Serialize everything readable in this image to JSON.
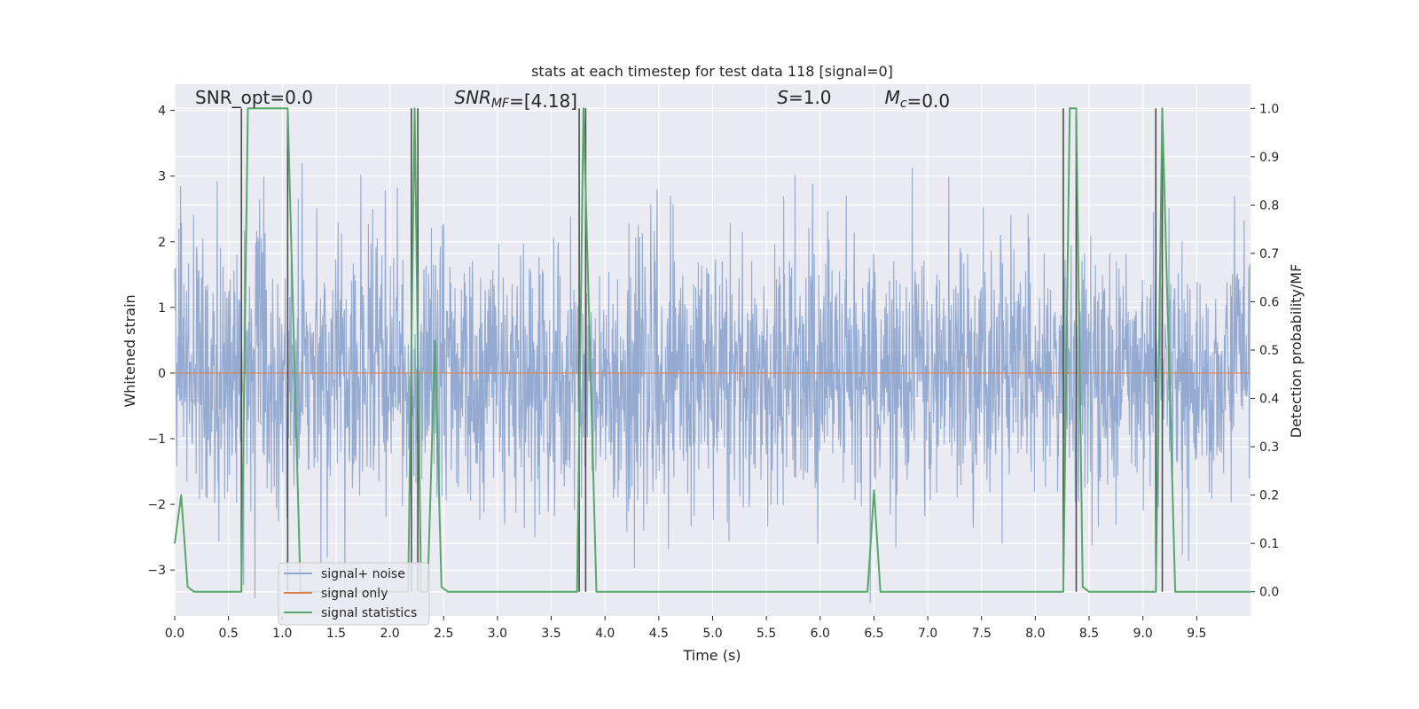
{
  "chart_data": {
    "type": "line",
    "title": "stats at each timestep for test data 118 [signal=0]",
    "xlabel": "Time (s)",
    "ylabel": "Whitened strain",
    "ylabel_right": "Detection probability/MF",
    "xlim": [
      0.0,
      10.0
    ],
    "ylim": [
      -3.7,
      4.4
    ],
    "ylim_right": [
      -0.05,
      1.05
    ],
    "x_ticks": [
      0.0,
      0.5,
      1.0,
      1.5,
      2.0,
      2.5,
      3.0,
      3.5,
      4.0,
      4.5,
      5.0,
      5.5,
      6.0,
      6.5,
      7.0,
      7.5,
      8.0,
      8.5,
      9.0,
      9.5
    ],
    "x_tick_labels": [
      "0.0",
      "0.5",
      "1.0",
      "1.5",
      "2.0",
      "2.5",
      "3.0",
      "3.5",
      "4.0",
      "4.5",
      "5.0",
      "5.5",
      "6.0",
      "6.5",
      "7.0",
      "7.5",
      "8.0",
      "8.5",
      "9.0",
      "9.5"
    ],
    "y_ticks": [
      -3,
      -2,
      -1,
      0,
      1,
      2,
      3,
      4
    ],
    "y_tick_labels": [
      "−3",
      "−2",
      "−1",
      "0",
      "1",
      "2",
      "3",
      "4"
    ],
    "y_right_ticks": [
      0.0,
      0.1,
      0.2,
      0.3,
      0.4,
      0.5,
      0.6,
      0.7,
      0.8,
      0.9,
      1.0
    ],
    "y_right_tick_labels": [
      "0.0",
      "0.1",
      "0.2",
      "0.3",
      "0.4",
      "0.5",
      "0.6",
      "0.7",
      "0.8",
      "0.9",
      "1.0"
    ],
    "grid": true,
    "legend_position": "lower-left",
    "annotations": [
      {
        "parts": [
          {
            "text": "SNR_opt=0.0",
            "italic": false
          }
        ],
        "x": 0.19,
        "y": 4.1
      },
      {
        "parts": [
          {
            "text": "SNR",
            "italic": true
          },
          {
            "text": "MF",
            "italic": true,
            "sub": true
          },
          {
            "text": "=[4.18]",
            "italic": false
          }
        ],
        "x": 2.6,
        "y": 4.1
      },
      {
        "parts": [
          {
            "text": "S",
            "italic": true
          },
          {
            "text": "=1.0",
            "italic": false
          }
        ],
        "x": 5.6,
        "y": 4.1
      },
      {
        "parts": [
          {
            "text": "M",
            "italic": true
          },
          {
            "text": "c",
            "italic": true,
            "sub": true
          },
          {
            "text": "=0.0",
            "italic": false
          }
        ],
        "x": 6.6,
        "y": 4.1
      }
    ],
    "series": [
      {
        "name": "signal+ noise",
        "color": "#8fa6cf",
        "axis": "left",
        "kind": "noise",
        "sample_rate_hz": 256,
        "amplitude_sigma": 1.0,
        "random_seed": 118,
        "display_range": [
          -3.5,
          4.0
        ]
      },
      {
        "name": "signal only",
        "color": "#dd8452",
        "axis": "left",
        "x": [
          0.0,
          10.0
        ],
        "y": [
          0.0,
          0.0
        ]
      },
      {
        "name": "signal statistics",
        "color": "#55a868",
        "axis": "right",
        "x": [
          0.0,
          0.06,
          0.12,
          0.18,
          0.62,
          0.68,
          1.05,
          1.11,
          1.17,
          2.17,
          2.23,
          2.29,
          2.35,
          2.42,
          2.48,
          2.54,
          3.74,
          3.8,
          3.86,
          3.92,
          6.44,
          6.5,
          6.56,
          8.26,
          8.32,
          8.38,
          8.44,
          8.5,
          9.12,
          9.18,
          9.24,
          9.3,
          10.0
        ],
        "y": [
          0.1,
          0.2,
          0.01,
          0.0,
          0.0,
          1.0,
          1.0,
          0.5,
          0.0,
          0.0,
          1.0,
          0.0,
          0.0,
          0.52,
          0.01,
          0.0,
          0.0,
          1.0,
          0.5,
          0.0,
          0.0,
          0.21,
          0.0,
          0.0,
          1.0,
          1.0,
          0.01,
          0.0,
          0.0,
          1.0,
          0.5,
          0.0,
          0.0
        ]
      }
    ],
    "marker_lines": {
      "color": "#4c4c4c",
      "x": [
        0.62,
        1.05,
        2.2,
        2.26,
        3.76,
        3.82,
        8.26,
        8.38,
        9.12,
        9.18
      ],
      "y_range_right": [
        0.0,
        1.0
      ]
    }
  }
}
